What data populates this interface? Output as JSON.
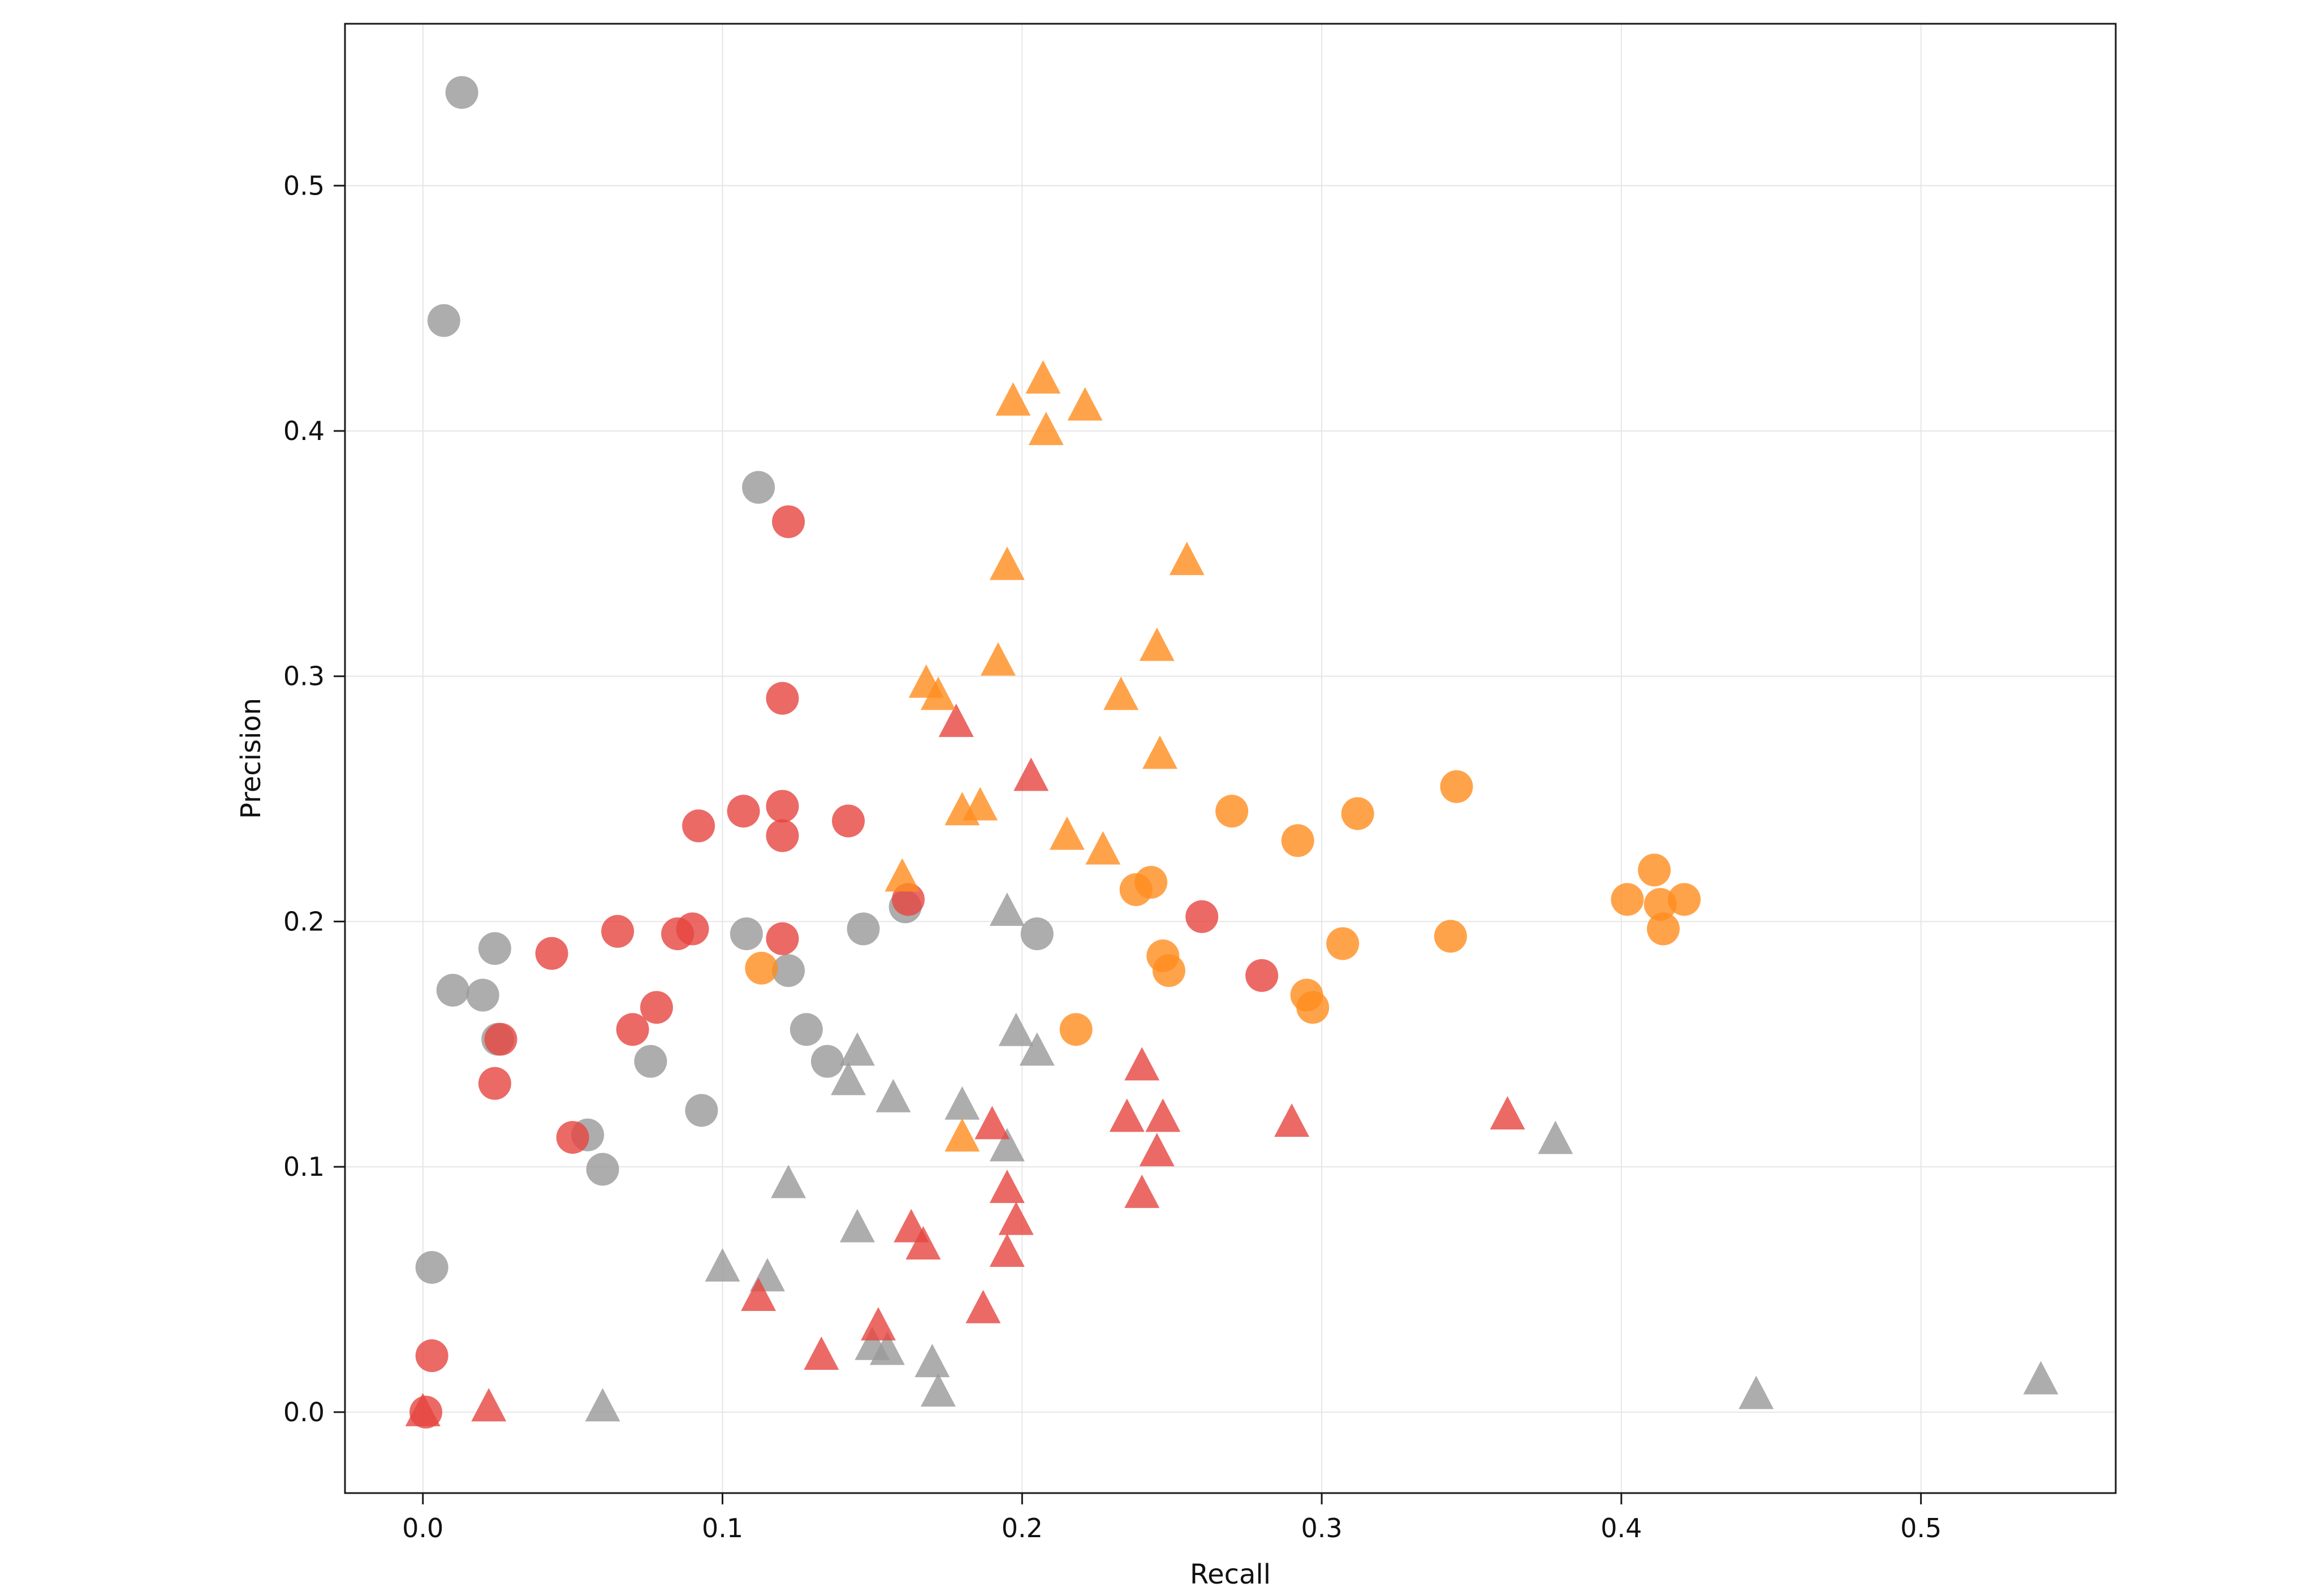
{
  "chart_data": {
    "type": "scatter",
    "title": "",
    "xlabel": "Recall",
    "ylabel": "Precision",
    "xlim": [
      -0.026,
      0.565
    ],
    "ylim": [
      -0.033,
      0.566
    ],
    "xticks": [
      0.0,
      0.1,
      0.2,
      0.3,
      0.4,
      0.5
    ],
    "xtick_labels": [
      "0.0",
      "0.1",
      "0.2",
      "0.3",
      "0.4",
      "0.5"
    ],
    "yticks": [
      0.0,
      0.1,
      0.2,
      0.3,
      0.4,
      0.5
    ],
    "ytick_labels": [
      "0.0",
      "0.1",
      "0.2",
      "0.3",
      "0.4",
      "0.5"
    ],
    "grid": true,
    "legend": "none",
    "marker_opacity": 0.8,
    "series": [
      {
        "name": "gray-circles",
        "marker": "circle",
        "color": "#999999",
        "points": [
          [
            0.013,
            0.538
          ],
          [
            0.007,
            0.445
          ],
          [
            0.112,
            0.377
          ],
          [
            0.024,
            0.189
          ],
          [
            0.01,
            0.172
          ],
          [
            0.02,
            0.17
          ],
          [
            0.025,
            0.152
          ],
          [
            0.055,
            0.113
          ],
          [
            0.06,
            0.099
          ],
          [
            0.076,
            0.143
          ],
          [
            0.093,
            0.123
          ],
          [
            0.108,
            0.195
          ],
          [
            0.122,
            0.18
          ],
          [
            0.128,
            0.156
          ],
          [
            0.135,
            0.143
          ],
          [
            0.147,
            0.197
          ],
          [
            0.161,
            0.206
          ],
          [
            0.205,
            0.195
          ],
          [
            0.003,
            0.059
          ]
        ]
      },
      {
        "name": "gray-triangles",
        "marker": "triangle",
        "color": "#999999",
        "points": [
          [
            0.195,
            0.204
          ],
          [
            0.205,
            0.147
          ],
          [
            0.198,
            0.155
          ],
          [
            0.145,
            0.147
          ],
          [
            0.142,
            0.135
          ],
          [
            0.157,
            0.128
          ],
          [
            0.18,
            0.125
          ],
          [
            0.195,
            0.108
          ],
          [
            0.122,
            0.093
          ],
          [
            0.1,
            0.059
          ],
          [
            0.115,
            0.055
          ],
          [
            0.145,
            0.075
          ],
          [
            0.15,
            0.027
          ],
          [
            0.155,
            0.025
          ],
          [
            0.17,
            0.02
          ],
          [
            0.172,
            0.008
          ],
          [
            0.06,
            0.002
          ],
          [
            0.445,
            0.007
          ],
          [
            0.54,
            0.013
          ],
          [
            0.378,
            0.111
          ]
        ]
      },
      {
        "name": "red-circles",
        "marker": "circle",
        "color": "#e64540",
        "points": [
          [
            0.122,
            0.363
          ],
          [
            0.12,
            0.291
          ],
          [
            0.092,
            0.239
          ],
          [
            0.107,
            0.245
          ],
          [
            0.12,
            0.247
          ],
          [
            0.12,
            0.235
          ],
          [
            0.142,
            0.241
          ],
          [
            0.162,
            0.209
          ],
          [
            0.043,
            0.187
          ],
          [
            0.065,
            0.196
          ],
          [
            0.085,
            0.195
          ],
          [
            0.09,
            0.197
          ],
          [
            0.12,
            0.193
          ],
          [
            0.026,
            0.152
          ],
          [
            0.024,
            0.134
          ],
          [
            0.07,
            0.156
          ],
          [
            0.078,
            0.165
          ],
          [
            0.05,
            0.112
          ],
          [
            0.003,
            0.023
          ],
          [
            0.001,
            0.0
          ],
          [
            0.26,
            0.202
          ],
          [
            0.28,
            0.178
          ]
        ]
      },
      {
        "name": "red-triangles",
        "marker": "triangle",
        "color": "#e64540",
        "points": [
          [
            0.178,
            0.281
          ],
          [
            0.203,
            0.259
          ],
          [
            0.24,
            0.141
          ],
          [
            0.235,
            0.12
          ],
          [
            0.247,
            0.12
          ],
          [
            0.245,
            0.106
          ],
          [
            0.24,
            0.089
          ],
          [
            0.29,
            0.118
          ],
          [
            0.362,
            0.121
          ],
          [
            0.19,
            0.117
          ],
          [
            0.195,
            0.091
          ],
          [
            0.198,
            0.078
          ],
          [
            0.195,
            0.065
          ],
          [
            0.187,
            0.042
          ],
          [
            0.163,
            0.075
          ],
          [
            0.167,
            0.068
          ],
          [
            0.152,
            0.035
          ],
          [
            0.133,
            0.023
          ],
          [
            0.112,
            0.047
          ],
          [
            0.022,
            0.002
          ],
          [
            0.0,
            0.0
          ]
        ]
      },
      {
        "name": "orange-triangles",
        "marker": "triangle",
        "color": "#ff8c1e",
        "points": [
          [
            0.207,
            0.421
          ],
          [
            0.197,
            0.412
          ],
          [
            0.208,
            0.4
          ],
          [
            0.221,
            0.41
          ],
          [
            0.195,
            0.345
          ],
          [
            0.255,
            0.347
          ],
          [
            0.245,
            0.312
          ],
          [
            0.192,
            0.306
          ],
          [
            0.168,
            0.297
          ],
          [
            0.172,
            0.292
          ],
          [
            0.233,
            0.292
          ],
          [
            0.246,
            0.268
          ],
          [
            0.18,
            0.245
          ],
          [
            0.186,
            0.247
          ],
          [
            0.215,
            0.235
          ],
          [
            0.227,
            0.229
          ],
          [
            0.16,
            0.218
          ],
          [
            0.18,
            0.112
          ]
        ]
      },
      {
        "name": "orange-circles",
        "marker": "circle",
        "color": "#ff8c1e",
        "points": [
          [
            0.27,
            0.245
          ],
          [
            0.292,
            0.233
          ],
          [
            0.312,
            0.244
          ],
          [
            0.345,
            0.255
          ],
          [
            0.238,
            0.213
          ],
          [
            0.243,
            0.216
          ],
          [
            0.247,
            0.186
          ],
          [
            0.249,
            0.18
          ],
          [
            0.307,
            0.191
          ],
          [
            0.295,
            0.17
          ],
          [
            0.297,
            0.165
          ],
          [
            0.343,
            0.194
          ],
          [
            0.402,
            0.209
          ],
          [
            0.411,
            0.221
          ],
          [
            0.413,
            0.207
          ],
          [
            0.421,
            0.209
          ],
          [
            0.414,
            0.197
          ],
          [
            0.113,
            0.181
          ],
          [
            0.218,
            0.156
          ]
        ]
      }
    ]
  },
  "colors": {
    "gridline": "#e6e6e6",
    "axis": "#1a1a1a",
    "tick_label": "#111111",
    "background": "#ffffff"
  }
}
